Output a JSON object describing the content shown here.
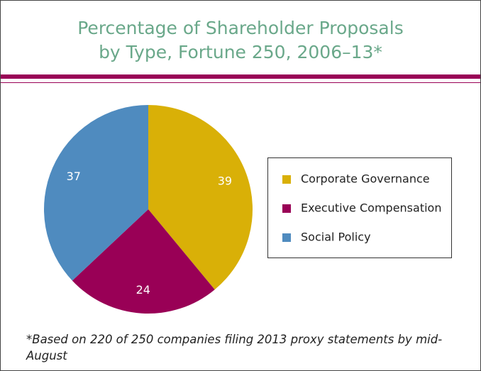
{
  "chart_data": {
    "type": "pie",
    "title": "Percentage of Shareholder Proposals by Type, Fortune 250, 2006–13*",
    "categories": [
      "Corporate Governance",
      "Executive Compensation",
      "Social Policy"
    ],
    "values": [
      39,
      24,
      37
    ],
    "colors": [
      "#d9b007",
      "#990056",
      "#4f8bbf"
    ],
    "footnote": "*Based on 220 of 250 companies filing 2013 proxy statements by mid-August"
  }
}
